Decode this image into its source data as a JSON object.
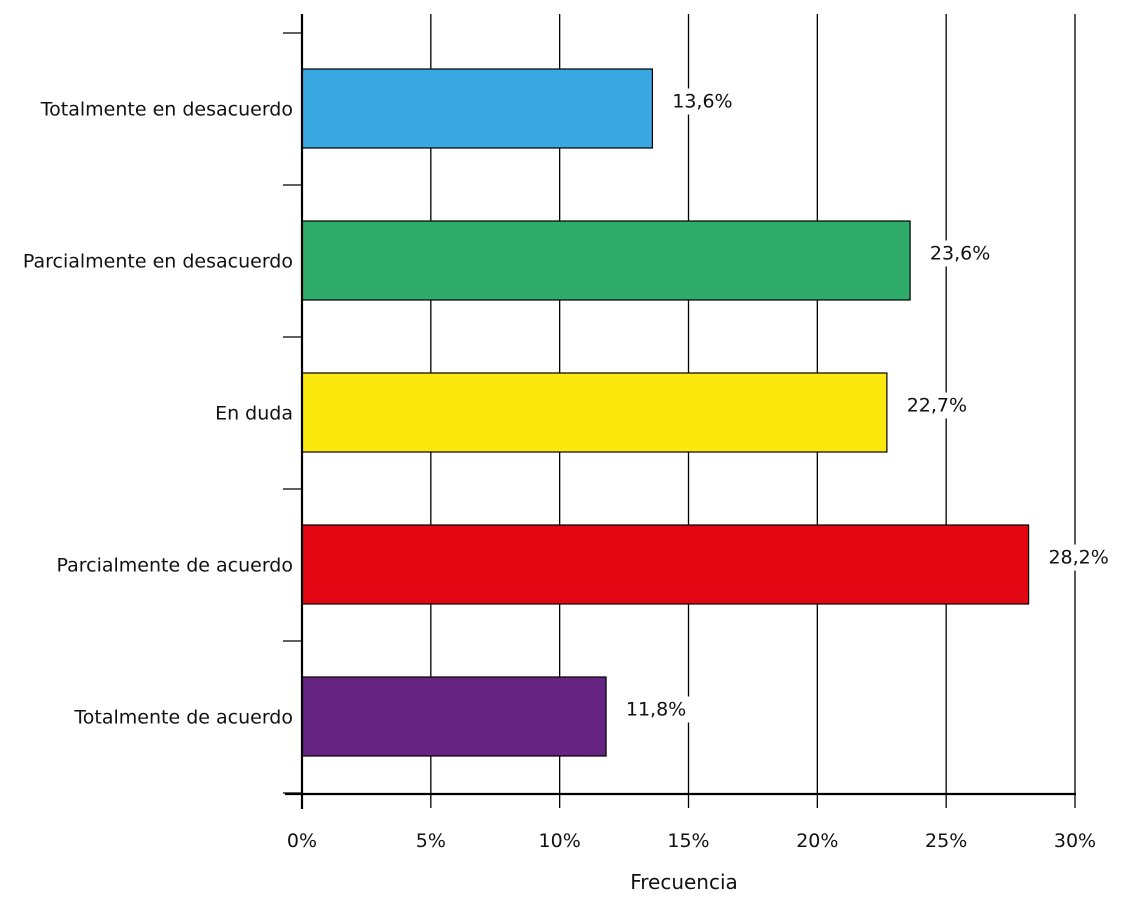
{
  "chart_data": {
    "type": "bar",
    "orientation": "horizontal",
    "categories": [
      "Totalmente en desacuerdo",
      "Parcialmente en desacuerdo",
      "En duda",
      "Parcialmente de acuerdo",
      "Totalmente de acuerdo"
    ],
    "values": [
      13.6,
      23.6,
      22.7,
      28.2,
      11.8
    ],
    "data_labels": [
      "13,6%",
      "23,6%",
      "22,7%",
      "28,2%",
      "11,8%"
    ],
    "colors": [
      "#3aa8e0",
      "#2fac6a",
      "#fbe90e",
      "#e20613",
      "#662483"
    ],
    "x_ticks": [
      "0%",
      "5%",
      "10%",
      "15%",
      "20%",
      "25%",
      "30%"
    ],
    "xlim": [
      0,
      30
    ],
    "xlabel": "Frecuencia",
    "ylabel": "",
    "title": "",
    "grid": true,
    "legend": "none"
  }
}
